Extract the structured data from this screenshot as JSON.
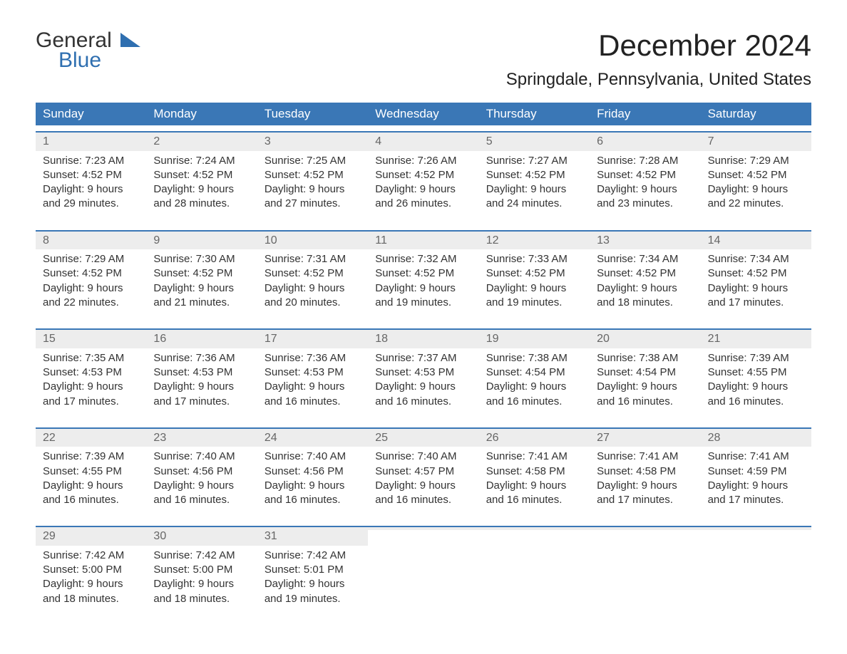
{
  "logo": {
    "word1": "General",
    "word2": "Blue"
  },
  "title": "December 2024",
  "location": "Springdale, Pennsylvania, United States",
  "colors": {
    "header_bg": "#3a77b6",
    "header_text": "#ffffff",
    "daynum_bg": "#ededed",
    "daynum_text": "#666666",
    "body_text": "#333333",
    "accent_blue": "#2f6fb0",
    "page_bg": "#ffffff"
  },
  "fonts": {
    "title_pt": 42,
    "location_pt": 24,
    "header_pt": 17,
    "body_pt": 15
  },
  "layout": {
    "columns": 7,
    "rows": 5
  },
  "weekdays": [
    "Sunday",
    "Monday",
    "Tuesday",
    "Wednesday",
    "Thursday",
    "Friday",
    "Saturday"
  ],
  "weeks": [
    [
      {
        "n": "1",
        "sr": "Sunrise: 7:23 AM",
        "ss": "Sunset: 4:52 PM",
        "d1": "Daylight: 9 hours",
        "d2": "and 29 minutes."
      },
      {
        "n": "2",
        "sr": "Sunrise: 7:24 AM",
        "ss": "Sunset: 4:52 PM",
        "d1": "Daylight: 9 hours",
        "d2": "and 28 minutes."
      },
      {
        "n": "3",
        "sr": "Sunrise: 7:25 AM",
        "ss": "Sunset: 4:52 PM",
        "d1": "Daylight: 9 hours",
        "d2": "and 27 minutes."
      },
      {
        "n": "4",
        "sr": "Sunrise: 7:26 AM",
        "ss": "Sunset: 4:52 PM",
        "d1": "Daylight: 9 hours",
        "d2": "and 26 minutes."
      },
      {
        "n": "5",
        "sr": "Sunrise: 7:27 AM",
        "ss": "Sunset: 4:52 PM",
        "d1": "Daylight: 9 hours",
        "d2": "and 24 minutes."
      },
      {
        "n": "6",
        "sr": "Sunrise: 7:28 AM",
        "ss": "Sunset: 4:52 PM",
        "d1": "Daylight: 9 hours",
        "d2": "and 23 minutes."
      },
      {
        "n": "7",
        "sr": "Sunrise: 7:29 AM",
        "ss": "Sunset: 4:52 PM",
        "d1": "Daylight: 9 hours",
        "d2": "and 22 minutes."
      }
    ],
    [
      {
        "n": "8",
        "sr": "Sunrise: 7:29 AM",
        "ss": "Sunset: 4:52 PM",
        "d1": "Daylight: 9 hours",
        "d2": "and 22 minutes."
      },
      {
        "n": "9",
        "sr": "Sunrise: 7:30 AM",
        "ss": "Sunset: 4:52 PM",
        "d1": "Daylight: 9 hours",
        "d2": "and 21 minutes."
      },
      {
        "n": "10",
        "sr": "Sunrise: 7:31 AM",
        "ss": "Sunset: 4:52 PM",
        "d1": "Daylight: 9 hours",
        "d2": "and 20 minutes."
      },
      {
        "n": "11",
        "sr": "Sunrise: 7:32 AM",
        "ss": "Sunset: 4:52 PM",
        "d1": "Daylight: 9 hours",
        "d2": "and 19 minutes."
      },
      {
        "n": "12",
        "sr": "Sunrise: 7:33 AM",
        "ss": "Sunset: 4:52 PM",
        "d1": "Daylight: 9 hours",
        "d2": "and 19 minutes."
      },
      {
        "n": "13",
        "sr": "Sunrise: 7:34 AM",
        "ss": "Sunset: 4:52 PM",
        "d1": "Daylight: 9 hours",
        "d2": "and 18 minutes."
      },
      {
        "n": "14",
        "sr": "Sunrise: 7:34 AM",
        "ss": "Sunset: 4:52 PM",
        "d1": "Daylight: 9 hours",
        "d2": "and 17 minutes."
      }
    ],
    [
      {
        "n": "15",
        "sr": "Sunrise: 7:35 AM",
        "ss": "Sunset: 4:53 PM",
        "d1": "Daylight: 9 hours",
        "d2": "and 17 minutes."
      },
      {
        "n": "16",
        "sr": "Sunrise: 7:36 AM",
        "ss": "Sunset: 4:53 PM",
        "d1": "Daylight: 9 hours",
        "d2": "and 17 minutes."
      },
      {
        "n": "17",
        "sr": "Sunrise: 7:36 AM",
        "ss": "Sunset: 4:53 PM",
        "d1": "Daylight: 9 hours",
        "d2": "and 16 minutes."
      },
      {
        "n": "18",
        "sr": "Sunrise: 7:37 AM",
        "ss": "Sunset: 4:53 PM",
        "d1": "Daylight: 9 hours",
        "d2": "and 16 minutes."
      },
      {
        "n": "19",
        "sr": "Sunrise: 7:38 AM",
        "ss": "Sunset: 4:54 PM",
        "d1": "Daylight: 9 hours",
        "d2": "and 16 minutes."
      },
      {
        "n": "20",
        "sr": "Sunrise: 7:38 AM",
        "ss": "Sunset: 4:54 PM",
        "d1": "Daylight: 9 hours",
        "d2": "and 16 minutes."
      },
      {
        "n": "21",
        "sr": "Sunrise: 7:39 AM",
        "ss": "Sunset: 4:55 PM",
        "d1": "Daylight: 9 hours",
        "d2": "and 16 minutes."
      }
    ],
    [
      {
        "n": "22",
        "sr": "Sunrise: 7:39 AM",
        "ss": "Sunset: 4:55 PM",
        "d1": "Daylight: 9 hours",
        "d2": "and 16 minutes."
      },
      {
        "n": "23",
        "sr": "Sunrise: 7:40 AM",
        "ss": "Sunset: 4:56 PM",
        "d1": "Daylight: 9 hours",
        "d2": "and 16 minutes."
      },
      {
        "n": "24",
        "sr": "Sunrise: 7:40 AM",
        "ss": "Sunset: 4:56 PM",
        "d1": "Daylight: 9 hours",
        "d2": "and 16 minutes."
      },
      {
        "n": "25",
        "sr": "Sunrise: 7:40 AM",
        "ss": "Sunset: 4:57 PM",
        "d1": "Daylight: 9 hours",
        "d2": "and 16 minutes."
      },
      {
        "n": "26",
        "sr": "Sunrise: 7:41 AM",
        "ss": "Sunset: 4:58 PM",
        "d1": "Daylight: 9 hours",
        "d2": "and 16 minutes."
      },
      {
        "n": "27",
        "sr": "Sunrise: 7:41 AM",
        "ss": "Sunset: 4:58 PM",
        "d1": "Daylight: 9 hours",
        "d2": "and 17 minutes."
      },
      {
        "n": "28",
        "sr": "Sunrise: 7:41 AM",
        "ss": "Sunset: 4:59 PM",
        "d1": "Daylight: 9 hours",
        "d2": "and 17 minutes."
      }
    ],
    [
      {
        "n": "29",
        "sr": "Sunrise: 7:42 AM",
        "ss": "Sunset: 5:00 PM",
        "d1": "Daylight: 9 hours",
        "d2": "and 18 minutes."
      },
      {
        "n": "30",
        "sr": "Sunrise: 7:42 AM",
        "ss": "Sunset: 5:00 PM",
        "d1": "Daylight: 9 hours",
        "d2": "and 18 minutes."
      },
      {
        "n": "31",
        "sr": "Sunrise: 7:42 AM",
        "ss": "Sunset: 5:01 PM",
        "d1": "Daylight: 9 hours",
        "d2": "and 19 minutes."
      },
      {
        "n": "",
        "sr": "",
        "ss": "",
        "d1": "",
        "d2": ""
      },
      {
        "n": "",
        "sr": "",
        "ss": "",
        "d1": "",
        "d2": ""
      },
      {
        "n": "",
        "sr": "",
        "ss": "",
        "d1": "",
        "d2": ""
      },
      {
        "n": "",
        "sr": "",
        "ss": "",
        "d1": "",
        "d2": ""
      }
    ]
  ]
}
